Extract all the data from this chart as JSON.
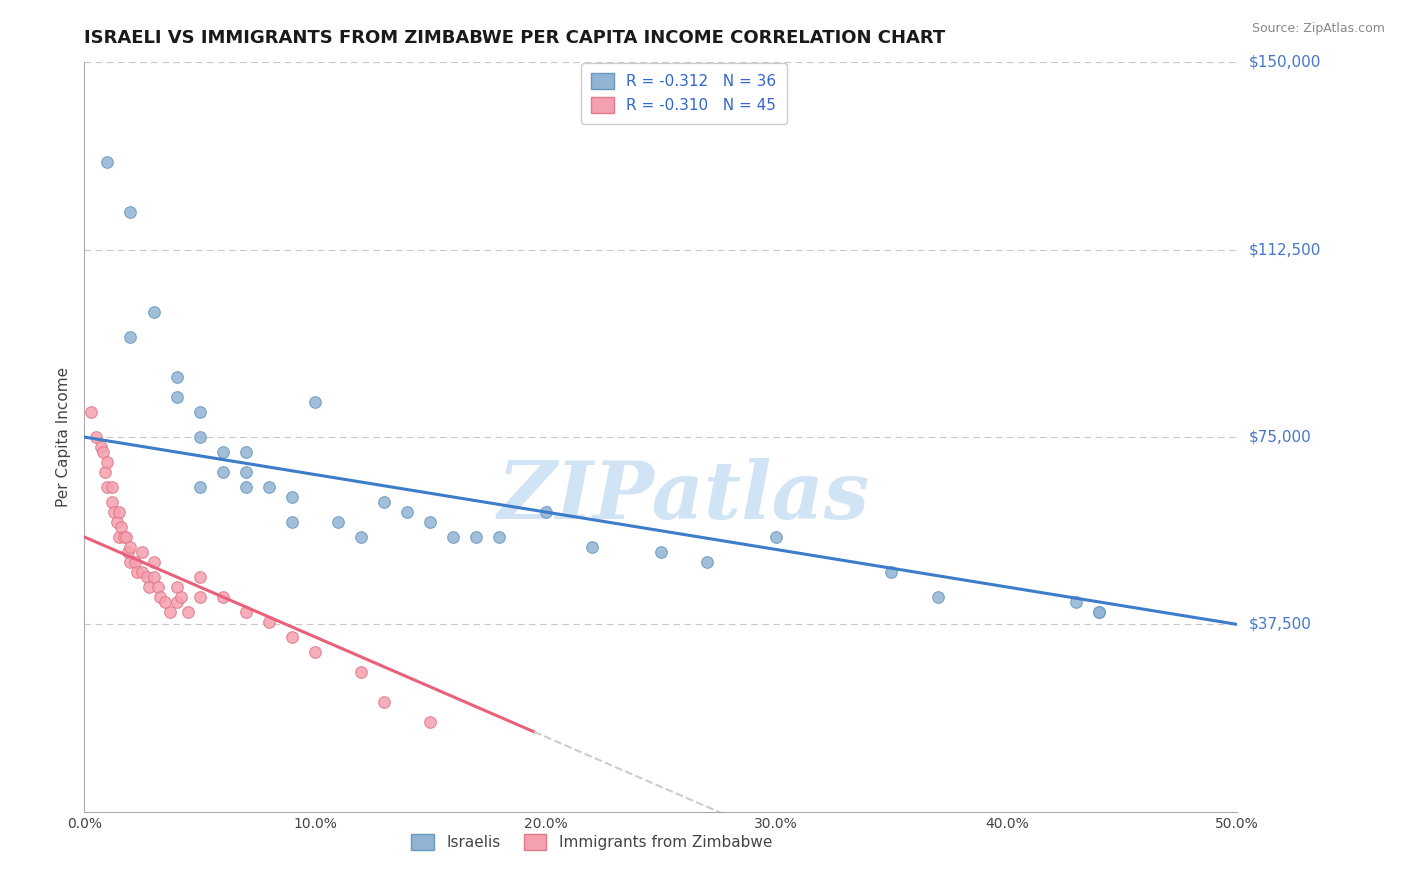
{
  "title": "ISRAELI VS IMMIGRANTS FROM ZIMBABWE PER CAPITA INCOME CORRELATION CHART",
  "source": "Source: ZipAtlas.com",
  "ylabel": "Per Capita Income",
  "xlim": [
    0.0,
    0.5
  ],
  "ylim": [
    0,
    150000
  ],
  "yticks": [
    0,
    37500,
    75000,
    112500,
    150000
  ],
  "ytick_labels": [
    "",
    "$37,500",
    "$75,000",
    "$112,500",
    "$150,000"
  ],
  "xticks": [
    0.0,
    0.1,
    0.2,
    0.3,
    0.4,
    0.5
  ],
  "xtick_labels": [
    "0.0%",
    "10.0%",
    "20.0%",
    "30.0%",
    "40.0%",
    "50.0%"
  ],
  "background_color": "#ffffff",
  "grid_color": "#c8c8c8",
  "title_fontsize": 13,
  "watermark_text": "ZIPatlas",
  "watermark_color": "#d0e4f5",
  "legend_top_labels": [
    "R = -0.312   N = 36",
    "R = -0.310   N = 45"
  ],
  "legend_bot_labels": [
    "Israelis",
    "Immigrants from Zimbabwe"
  ],
  "blue_color": "#92b4d4",
  "blue_edge": "#6898c0",
  "blue_line_color": "#3d7cc9",
  "pink_color": "#f5a0b0",
  "pink_edge": "#e07888",
  "pink_line_color": "#e8607a",
  "israelis_x": [
    0.01,
    0.02,
    0.03,
    0.04,
    0.04,
    0.05,
    0.05,
    0.06,
    0.06,
    0.07,
    0.07,
    0.08,
    0.09,
    0.09,
    0.1,
    0.11,
    0.12,
    0.13,
    0.14,
    0.15,
    0.16,
    0.17,
    0.18,
    0.2,
    0.22,
    0.25,
    0.27,
    0.3,
    0.35,
    0.37,
    0.43,
    0.44,
    0.44,
    0.02,
    0.05,
    0.07
  ],
  "israelis_y": [
    130000,
    120000,
    100000,
    87000,
    83000,
    80000,
    75000,
    72000,
    68000,
    68000,
    65000,
    65000,
    63000,
    58000,
    82000,
    58000,
    55000,
    62000,
    60000,
    58000,
    55000,
    55000,
    55000,
    60000,
    53000,
    52000,
    50000,
    55000,
    48000,
    43000,
    42000,
    40000,
    40000,
    95000,
    65000,
    72000
  ],
  "zimbabwe_x": [
    0.003,
    0.005,
    0.007,
    0.008,
    0.009,
    0.01,
    0.01,
    0.012,
    0.012,
    0.013,
    0.014,
    0.015,
    0.015,
    0.016,
    0.017,
    0.018,
    0.019,
    0.02,
    0.02,
    0.022,
    0.023,
    0.025,
    0.025,
    0.027,
    0.028,
    0.03,
    0.03,
    0.032,
    0.033,
    0.035,
    0.037,
    0.04,
    0.04,
    0.042,
    0.045,
    0.05,
    0.05,
    0.06,
    0.07,
    0.08,
    0.09,
    0.1,
    0.12,
    0.13,
    0.15
  ],
  "zimbabwe_y": [
    80000,
    75000,
    73000,
    72000,
    68000,
    70000,
    65000,
    65000,
    62000,
    60000,
    58000,
    60000,
    55000,
    57000,
    55000,
    55000,
    52000,
    53000,
    50000,
    50000,
    48000,
    48000,
    52000,
    47000,
    45000,
    47000,
    50000,
    45000,
    43000,
    42000,
    40000,
    42000,
    45000,
    43000,
    40000,
    47000,
    43000,
    43000,
    40000,
    38000,
    35000,
    32000,
    28000,
    22000,
    18000
  ],
  "blue_line_x0": 0.0,
  "blue_line_y0": 75000,
  "blue_line_x1": 0.5,
  "blue_line_y1": 37500,
  "pink_line_x0": 0.0,
  "pink_line_y0": 55000,
  "pink_line_x1": 0.2,
  "pink_line_y1": 15000
}
